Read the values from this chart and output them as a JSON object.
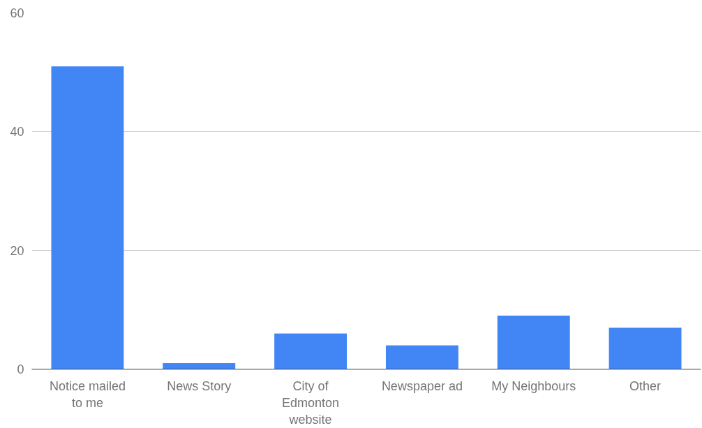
{
  "chart_data": {
    "type": "bar",
    "categories": [
      "Notice mailed to me",
      "News Story",
      "City of Edmonton website",
      "Newspaper ad",
      "My Neighbours",
      "Other"
    ],
    "values": [
      51,
      1,
      6,
      4,
      9,
      7
    ],
    "color": "#4285f4",
    "ylim": [
      0,
      60
    ],
    "yticks": [
      0,
      20,
      40,
      60
    ],
    "grid": "y"
  }
}
